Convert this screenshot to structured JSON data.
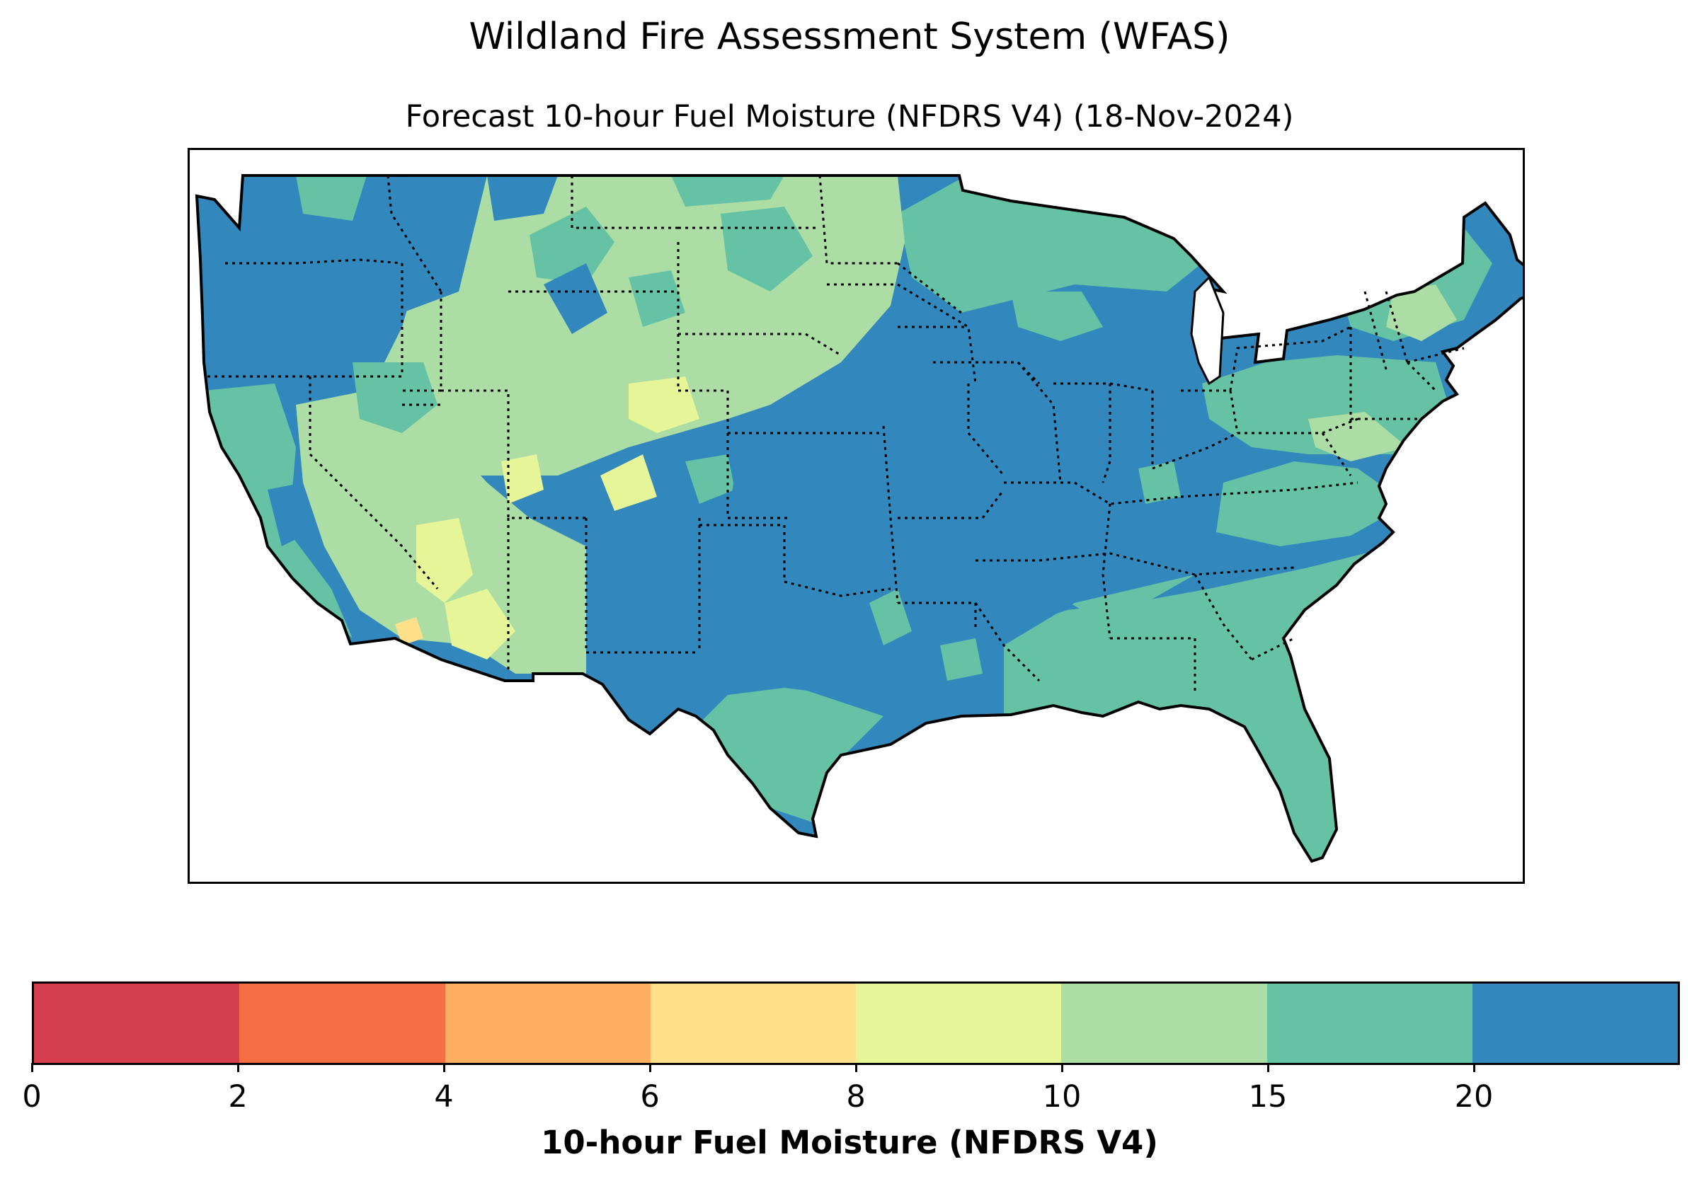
{
  "figure": {
    "suptitle": "Wildland Fire Assessment System (WFAS)",
    "title": "Forecast 10-hour Fuel Moisture (NFDRS V4) (18-Nov-2024)"
  },
  "map": {
    "region": "Conterminous United States",
    "variable": "10-hour Fuel Moisture (NFDRS V4)",
    "date": "18-Nov-2024",
    "state_borders": "dotted",
    "coastline": "solid"
  },
  "legend": {
    "label": "10-hour Fuel Moisture (NFDRS V4)",
    "bins": [
      {
        "range": [
          0,
          2
        ],
        "color": "#d53e4f"
      },
      {
        "range": [
          2,
          4
        ],
        "color": "#f46d43"
      },
      {
        "range": [
          4,
          6
        ],
        "color": "#fdae61"
      },
      {
        "range": [
          6,
          8
        ],
        "color": "#fee08b"
      },
      {
        "range": [
          8,
          10
        ],
        "color": "#e6f598"
      },
      {
        "range": [
          10,
          15
        ],
        "color": "#abdda4"
      },
      {
        "range": [
          15,
          20
        ],
        "color": "#66c2a5"
      },
      {
        "range": [
          20,
          null
        ],
        "color": "#3288bd"
      }
    ],
    "tick_labels": [
      "0",
      "2",
      "4",
      "6",
      "8",
      "10",
      "15",
      "20"
    ]
  }
}
